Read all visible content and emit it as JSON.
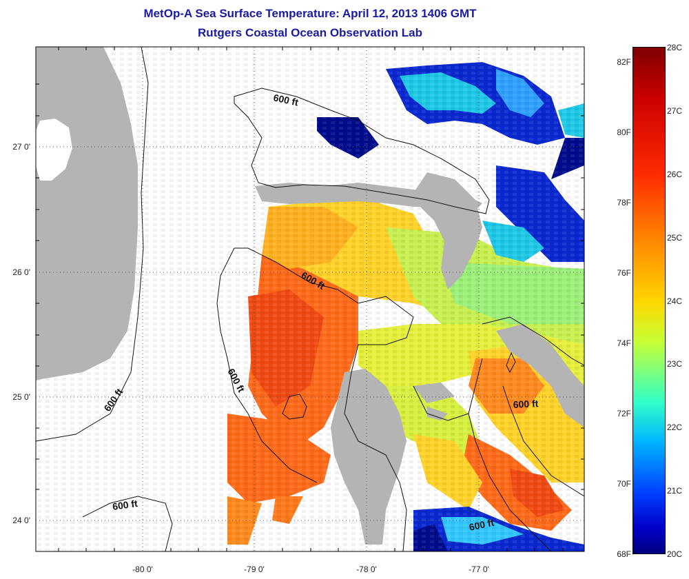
{
  "title": {
    "line1": "MetOp-A Sea Surface Temperature:  April 12, 2013 1406 GMT",
    "line2": "Rutgers Coastal Ocean Observation Lab"
  },
  "map": {
    "x_ticks": [
      "-80 0'",
      "-79 0'",
      "-78 0'",
      "-77 0'"
    ],
    "y_ticks": [
      "27 0'",
      "26 0'",
      "25 0'",
      "24 0'"
    ],
    "contour_label": "600 ft",
    "land_color": "#b4b4b4",
    "cloud_color": "#ffffff"
  },
  "colorbar": {
    "celsius": [
      "28C",
      "27C",
      "26C",
      "25C",
      "24C",
      "23C",
      "22C",
      "21C",
      "20C"
    ],
    "fahrenheit": [
      "82F",
      "80F",
      "78F",
      "76F",
      "74F",
      "72F",
      "70F",
      "68F"
    ],
    "scale_colors": [
      "#7f0000",
      "#ff2a00",
      "#ff8000",
      "#ffd500",
      "#c8ff32",
      "#32ffc8",
      "#00b4ff",
      "#0000c8"
    ]
  }
}
